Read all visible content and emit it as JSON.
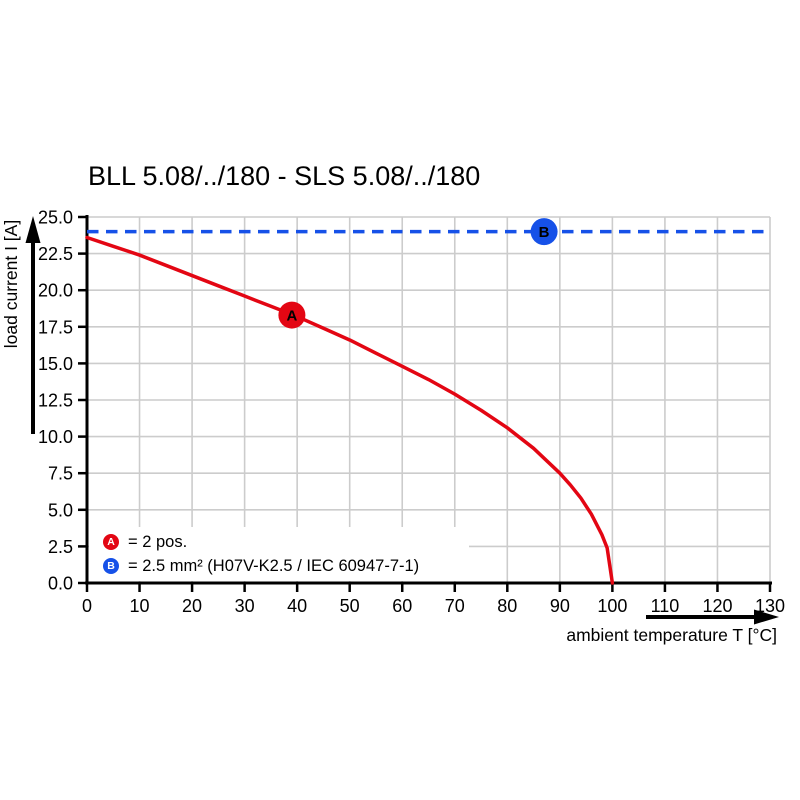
{
  "page": {
    "background": "#ffffff"
  },
  "colors": {
    "grid": "#cccccc",
    "axis": "#000000",
    "curve_red": "#e30613",
    "line_blue": "#1651e8",
    "marker_text": "#ffffff"
  },
  "chart_data": {
    "type": "line",
    "title": "BLL 5.08/../180 - SLS 5.08/../180",
    "xlabel": "ambient temperature T [°C]",
    "ylabel": "load current I [A]",
    "xlim": [
      0,
      130
    ],
    "ylim": [
      0,
      25
    ],
    "x_ticks": [
      "0",
      "10",
      "20",
      "30",
      "40",
      "50",
      "60",
      "70",
      "80",
      "90",
      "100",
      "110",
      "120",
      "130"
    ],
    "y_ticks": [
      "0.0",
      "2.5",
      "5.0",
      "7.5",
      "10.0",
      "12.5",
      "15.0",
      "17.5",
      "20.0",
      "22.5",
      "25.0"
    ],
    "grid": true,
    "legend_position": "bottom-left",
    "series": [
      {
        "name": "derating-curve-A",
        "label": "= 2 pos.",
        "color": "#e30613",
        "style": "solid",
        "x": [
          0,
          5,
          10,
          15,
          20,
          25,
          30,
          35,
          40,
          45,
          50,
          55,
          60,
          65,
          70,
          75,
          80,
          85,
          90,
          92,
          94,
          96,
          98,
          99,
          100
        ],
        "y": [
          23.6,
          23.0,
          22.4,
          21.7,
          21.0,
          20.3,
          19.6,
          18.9,
          18.2,
          17.4,
          16.6,
          15.7,
          14.8,
          13.9,
          12.9,
          11.8,
          10.6,
          9.2,
          7.5,
          6.7,
          5.8,
          4.7,
          3.3,
          2.4,
          0.0
        ]
      },
      {
        "name": "rated-current-line-B",
        "label": "= 2.5 mm² (H07V-K2.5 / IEC 60947-7-1)",
        "color": "#1651e8",
        "style": "dashed",
        "x": [
          0,
          130
        ],
        "y": [
          24,
          24
        ]
      }
    ],
    "markers": [
      {
        "label": "A",
        "x": 39,
        "y": 18.3,
        "color": "#e30613"
      },
      {
        "label": "B",
        "x": 87,
        "y": 24,
        "color": "#1651e8"
      }
    ]
  }
}
